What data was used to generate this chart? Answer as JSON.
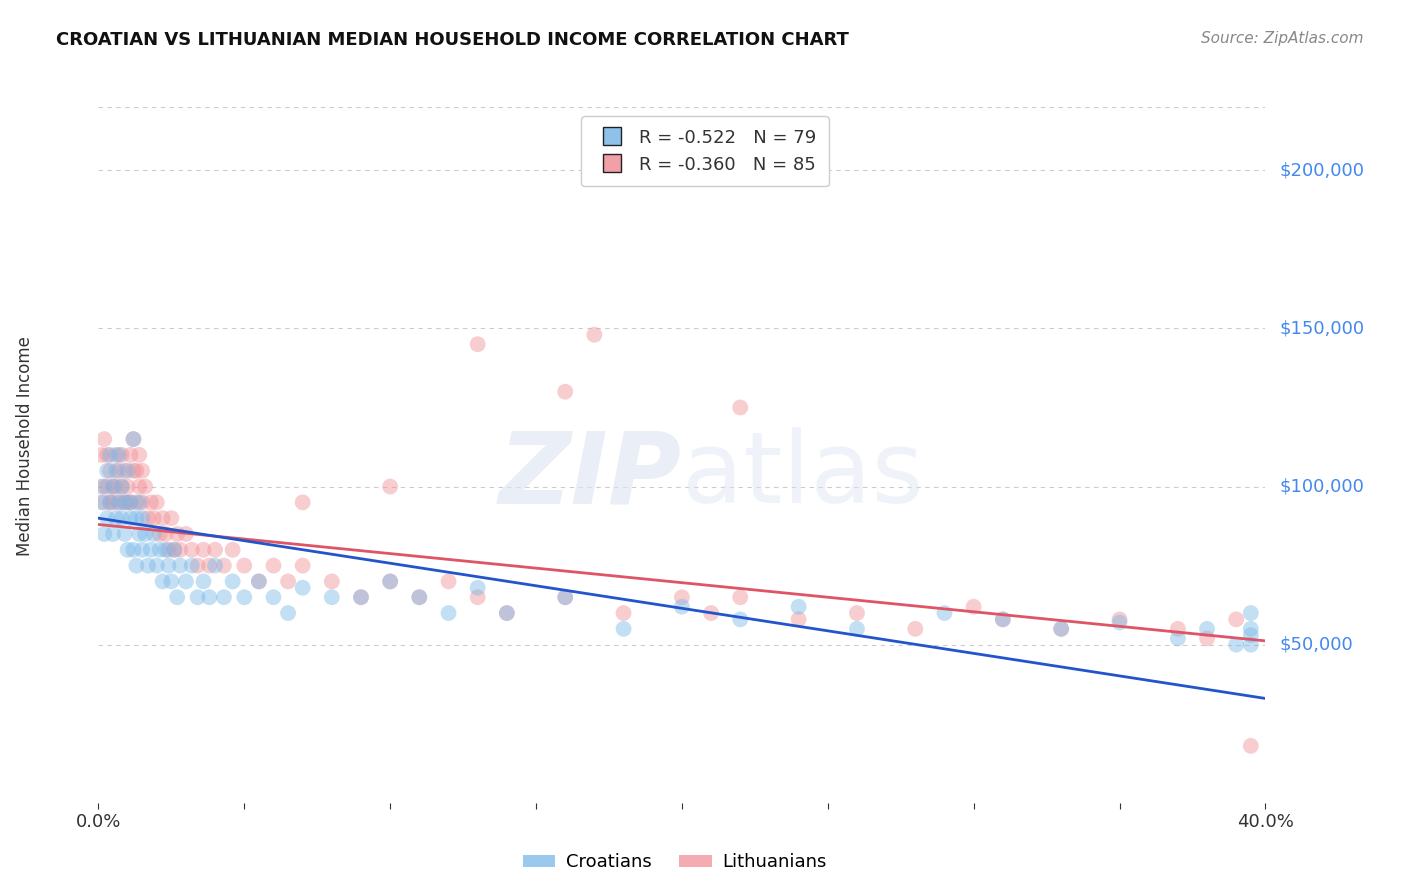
{
  "title": "CROATIAN VS LITHUANIAN MEDIAN HOUSEHOLD INCOME CORRELATION CHART",
  "source": "Source: ZipAtlas.com",
  "ylabel": "Median Household Income",
  "xlim": [
    0.0,
    0.4
  ],
  "ylim": [
    0,
    220000
  ],
  "yticks": [
    50000,
    100000,
    150000,
    200000
  ],
  "xticks": [
    0.0,
    0.05,
    0.1,
    0.15,
    0.2,
    0.25,
    0.3,
    0.35,
    0.4
  ],
  "background_color": "#ffffff",
  "grid_color": "#cccccc",
  "croatian_color": "#7ab8e8",
  "lithuanian_color": "#f09098",
  "croatian_line_color": "#2255cc",
  "lithuanian_line_color": "#dd5566",
  "croatian_R": "-0.522",
  "croatian_N": "79",
  "lithuanian_R": "-0.360",
  "lithuanian_N": "85",
  "marker_size": 130,
  "marker_alpha": 0.45,
  "croatian_slope": -142500,
  "croatian_intercept": 90000,
  "lithuanian_slope": -92000,
  "lithuanian_intercept": 88000,
  "croatian_x": [
    0.001,
    0.002,
    0.002,
    0.003,
    0.003,
    0.004,
    0.004,
    0.005,
    0.005,
    0.006,
    0.006,
    0.007,
    0.007,
    0.008,
    0.008,
    0.009,
    0.009,
    0.01,
    0.01,
    0.011,
    0.011,
    0.012,
    0.012,
    0.013,
    0.013,
    0.014,
    0.014,
    0.015,
    0.015,
    0.016,
    0.017,
    0.018,
    0.019,
    0.02,
    0.021,
    0.022,
    0.023,
    0.024,
    0.025,
    0.026,
    0.027,
    0.028,
    0.03,
    0.032,
    0.034,
    0.036,
    0.038,
    0.04,
    0.043,
    0.046,
    0.05,
    0.055,
    0.06,
    0.065,
    0.07,
    0.08,
    0.09,
    0.1,
    0.11,
    0.12,
    0.13,
    0.14,
    0.16,
    0.18,
    0.2,
    0.22,
    0.24,
    0.26,
    0.29,
    0.31,
    0.33,
    0.35,
    0.37,
    0.38,
    0.39,
    0.395,
    0.395,
    0.395,
    0.395
  ],
  "croatian_y": [
    95000,
    100000,
    85000,
    105000,
    90000,
    95000,
    110000,
    85000,
    100000,
    90000,
    105000,
    95000,
    110000,
    90000,
    100000,
    85000,
    95000,
    105000,
    80000,
    90000,
    95000,
    115000,
    80000,
    90000,
    75000,
    85000,
    95000,
    80000,
    90000,
    85000,
    75000,
    80000,
    85000,
    75000,
    80000,
    70000,
    80000,
    75000,
    70000,
    80000,
    65000,
    75000,
    70000,
    75000,
    65000,
    70000,
    65000,
    75000,
    65000,
    70000,
    65000,
    70000,
    65000,
    60000,
    68000,
    65000,
    65000,
    70000,
    65000,
    60000,
    68000,
    60000,
    65000,
    55000,
    62000,
    58000,
    62000,
    55000,
    60000,
    58000,
    55000,
    57000,
    52000,
    55000,
    50000,
    53000,
    60000,
    55000,
    50000
  ],
  "lithuanian_x": [
    0.001,
    0.001,
    0.002,
    0.002,
    0.003,
    0.003,
    0.004,
    0.004,
    0.005,
    0.005,
    0.006,
    0.006,
    0.007,
    0.007,
    0.008,
    0.008,
    0.009,
    0.009,
    0.01,
    0.01,
    0.011,
    0.011,
    0.012,
    0.012,
    0.013,
    0.013,
    0.014,
    0.014,
    0.015,
    0.015,
    0.016,
    0.017,
    0.018,
    0.019,
    0.02,
    0.021,
    0.022,
    0.023,
    0.024,
    0.025,
    0.026,
    0.027,
    0.028,
    0.03,
    0.032,
    0.034,
    0.036,
    0.038,
    0.04,
    0.043,
    0.046,
    0.05,
    0.055,
    0.06,
    0.065,
    0.07,
    0.08,
    0.09,
    0.1,
    0.11,
    0.12,
    0.13,
    0.14,
    0.16,
    0.18,
    0.2,
    0.21,
    0.22,
    0.24,
    0.26,
    0.28,
    0.3,
    0.31,
    0.33,
    0.35,
    0.37,
    0.38,
    0.39,
    0.13,
    0.16,
    0.22,
    0.17,
    0.1,
    0.07,
    0.395
  ],
  "lithuanian_y": [
    100000,
    110000,
    95000,
    115000,
    100000,
    110000,
    95000,
    105000,
    100000,
    95000,
    110000,
    100000,
    105000,
    95000,
    100000,
    110000,
    95000,
    105000,
    95000,
    100000,
    110000,
    95000,
    105000,
    115000,
    95000,
    105000,
    100000,
    110000,
    95000,
    105000,
    100000,
    90000,
    95000,
    90000,
    95000,
    85000,
    90000,
    85000,
    80000,
    90000,
    80000,
    85000,
    80000,
    85000,
    80000,
    75000,
    80000,
    75000,
    80000,
    75000,
    80000,
    75000,
    70000,
    75000,
    70000,
    75000,
    70000,
    65000,
    70000,
    65000,
    70000,
    65000,
    60000,
    65000,
    60000,
    65000,
    60000,
    65000,
    58000,
    60000,
    55000,
    62000,
    58000,
    55000,
    58000,
    55000,
    52000,
    58000,
    145000,
    130000,
    125000,
    148000,
    100000,
    95000,
    18000
  ]
}
